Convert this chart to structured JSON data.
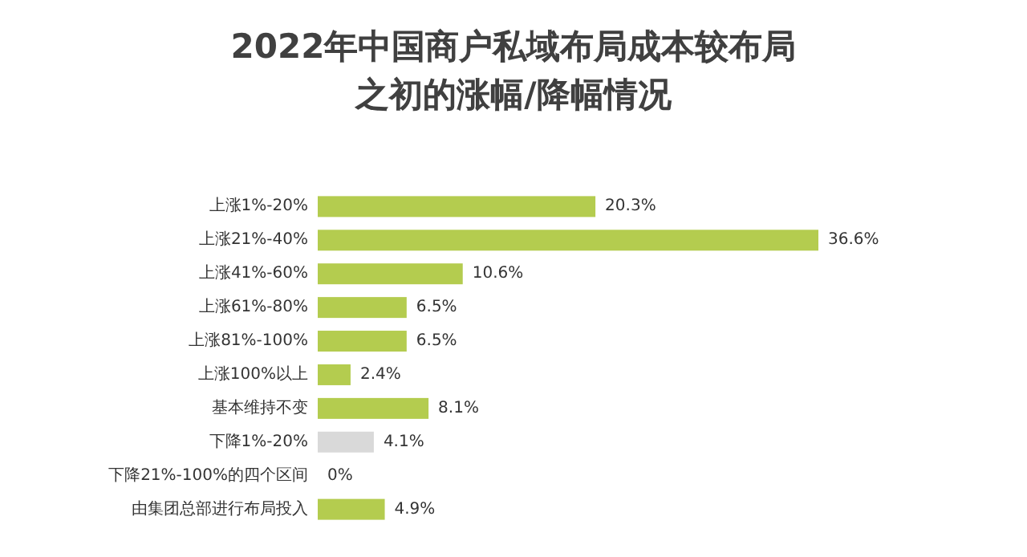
{
  "chart_data": {
    "type": "bar",
    "orientation": "horizontal",
    "title": "2022年中国商户私域布局成本较布局之初的涨幅/降幅情况",
    "categories": [
      "上涨1%-20%",
      "上涨21%-40%",
      "上涨41%-60%",
      "上涨61%-80%",
      "上涨81%-100%",
      "上涨100%以上",
      "基本维持不变",
      "下降1%-20%",
      "下降21%-100%的四个区间",
      "由集团总部进行布局投入"
    ],
    "values": [
      20.3,
      36.6,
      10.6,
      6.5,
      6.5,
      2.4,
      8.1,
      4.1,
      0,
      4.9
    ],
    "value_labels": [
      "20.3%",
      "36.6%",
      "10.6%",
      "6.5%",
      "6.5%",
      "2.4%",
      "8.1%",
      "4.1%",
      "0%",
      "4.9%"
    ],
    "colors": [
      "#b4cc4f",
      "#b4cc4f",
      "#b4cc4f",
      "#b4cc4f",
      "#b4cc4f",
      "#b4cc4f",
      "#b4cc4f",
      "#d9d9d9",
      "#b4cc4f",
      "#b4cc4f"
    ]
  }
}
